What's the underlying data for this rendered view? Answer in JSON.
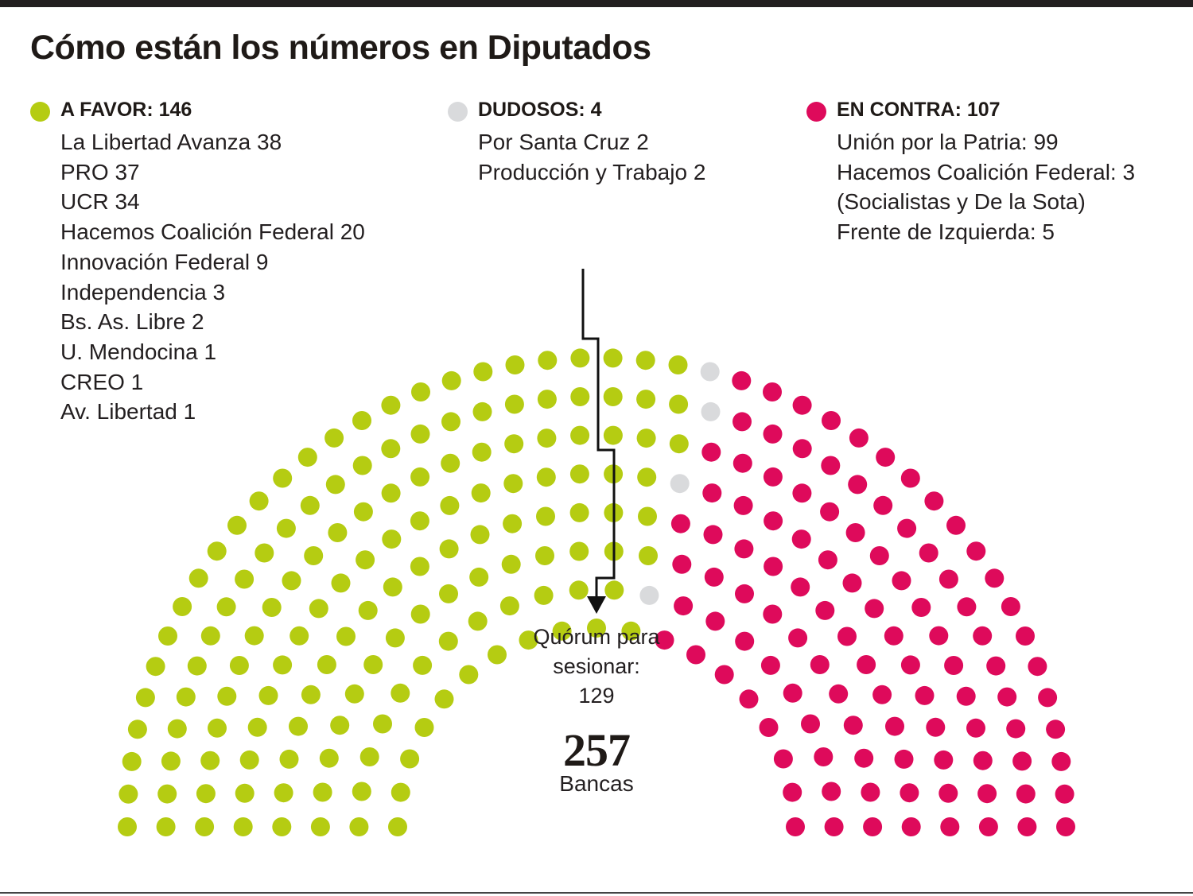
{
  "title": "Cómo están los números en Diputados",
  "colors": {
    "favor": "#b5cc12",
    "dudosos": "#d9dadc",
    "contra": "#de0a5b",
    "text": "#231f20"
  },
  "legend": {
    "favor": {
      "heading": "A FAVOR: 146",
      "items": [
        "La Libertad Avanza 38",
        "PRO 37",
        "UCR 34",
        "Hacemos Coalición Federal 20",
        "Innovación Federal 9",
        "Independencia 3",
        "Bs. As. Libre 2",
        "U. Mendocina 1",
        "CREO 1",
        "Av. Libertad 1"
      ]
    },
    "dudosos": {
      "heading": "DUDOSOS: 4",
      "items": [
        "Por Santa Cruz 2",
        "Producción y Trabajo 2"
      ]
    },
    "contra": {
      "heading": "EN CONTRA: 107",
      "items": [
        "Unión por la Patria: 99",
        "Hacemos Coalición Federal: 3",
        "(Socialistas y De la Sota)",
        "Frente de Izquierda: 5"
      ]
    }
  },
  "quorum": {
    "label_line1": "Quórum para",
    "label_line2": "sesionar:",
    "value": "129"
  },
  "total": {
    "number": "257",
    "label": "Bancas"
  },
  "chart_data": {
    "type": "parliament",
    "title": "Cómo están los números en Diputados",
    "total_seats": 257,
    "quorum": 129,
    "groups": [
      {
        "name": "A FAVOR",
        "seats": 146,
        "color": "#b5cc12"
      },
      {
        "name": "DUDOSOS",
        "seats": 4,
        "color": "#d9dadc"
      },
      {
        "name": "EN CONTRA",
        "seats": 107,
        "color": "#de0a5b"
      }
    ],
    "breakdown": {
      "A FAVOR": [
        {
          "party": "La Libertad Avanza",
          "seats": 38
        },
        {
          "party": "PRO",
          "seats": 37
        },
        {
          "party": "UCR",
          "seats": 34
        },
        {
          "party": "Hacemos Coalición Federal",
          "seats": 20
        },
        {
          "party": "Innovación Federal",
          "seats": 9
        },
        {
          "party": "Independencia",
          "seats": 3
        },
        {
          "party": "Bs. As. Libre",
          "seats": 2
        },
        {
          "party": "U. Mendocina",
          "seats": 1
        },
        {
          "party": "CREO",
          "seats": 1
        },
        {
          "party": "Av. Libertad",
          "seats": 1
        }
      ],
      "DUDOSOS": [
        {
          "party": "Por Santa Cruz",
          "seats": 2
        },
        {
          "party": "Producción y Trabajo",
          "seats": 2
        }
      ],
      "EN CONTRA": [
        {
          "party": "Unión por la Patria",
          "seats": 99
        },
        {
          "party": "Hacemos Coalición Federal (Socialistas y De la Sota)",
          "seats": 3
        },
        {
          "party": "Frente de Izquierda",
          "seats": 5
        }
      ]
    }
  }
}
